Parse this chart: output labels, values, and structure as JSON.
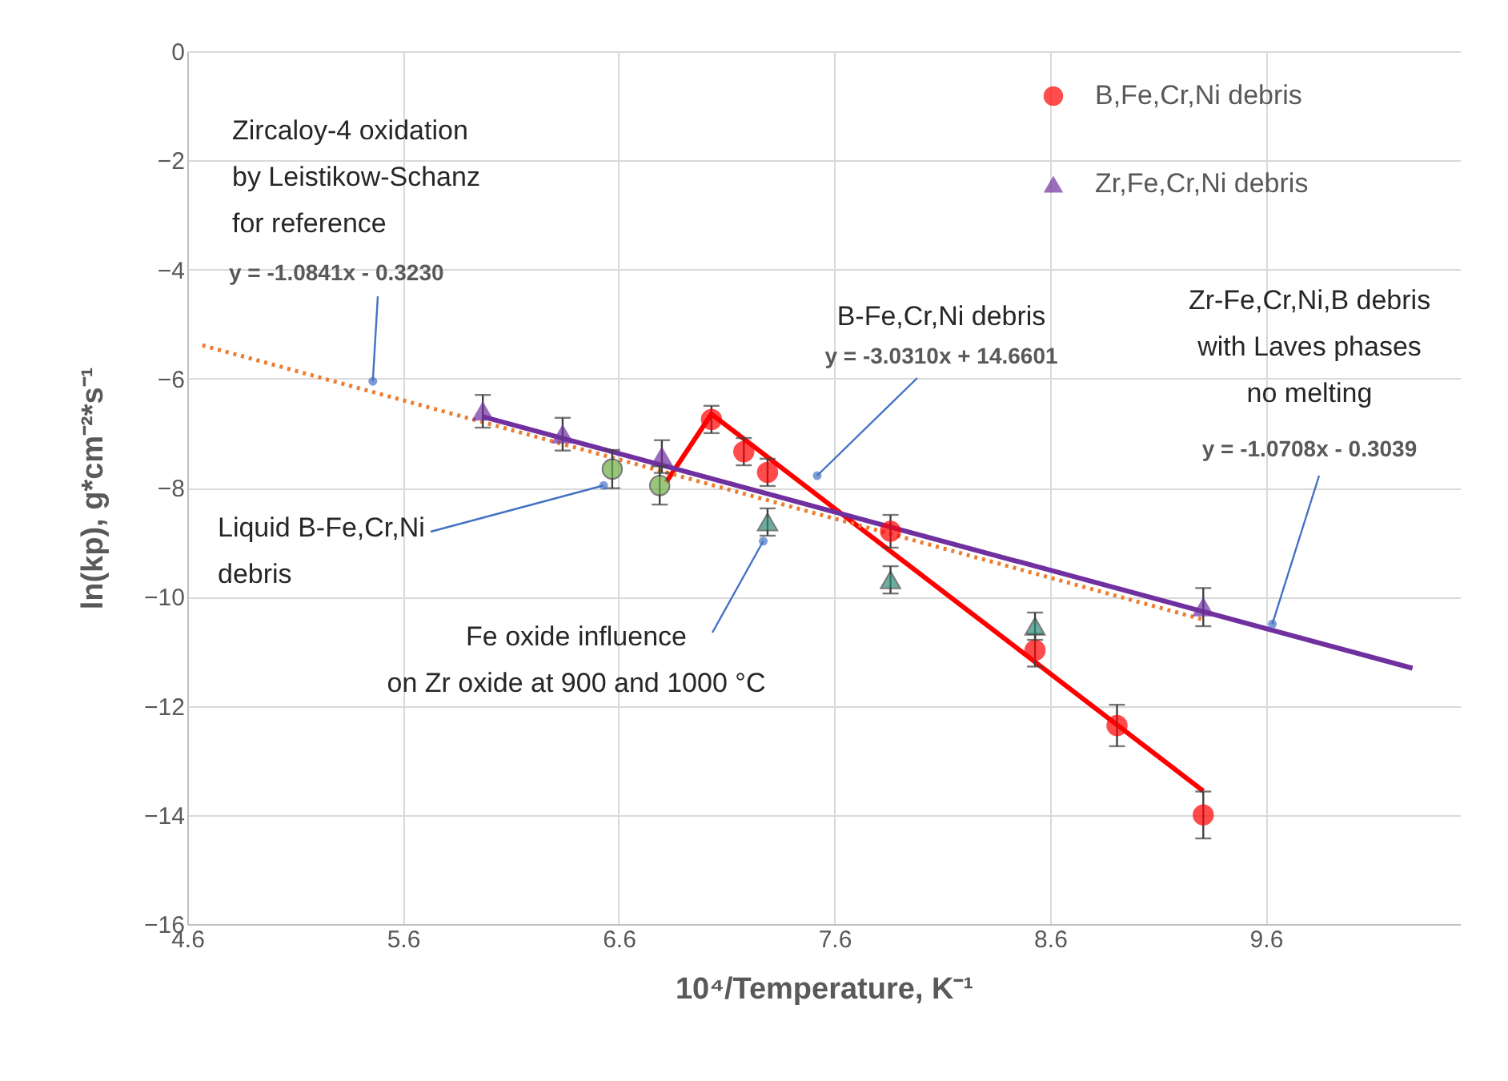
{
  "chart_data": {
    "type": "scatter",
    "xlabel": "10⁴/Temperature, K⁻¹",
    "ylabel": "ln(kp), g*cm⁻²*s⁻¹",
    "xlim": [
      4.6,
      10.5
    ],
    "ylim": [
      -16,
      0
    ],
    "xticks": [
      4.6,
      5.6,
      6.6,
      7.6,
      8.6,
      9.6
    ],
    "yticks": [
      0,
      -2,
      -4,
      -6,
      -8,
      -10,
      -12,
      -14,
      -16
    ],
    "grid": true,
    "legend": "top right",
    "series": [
      {
        "name": "B,Fe,Cr,Ni debris",
        "type": "scatter",
        "marker": "circle",
        "color": "#ff0000",
        "x": [
          7.03,
          7.18,
          7.29,
          7.86,
          8.53,
          8.91,
          9.31
        ],
        "values": [
          -6.75,
          -7.34,
          -7.72,
          -8.8,
          -10.98,
          -12.36,
          -14.0
        ],
        "errors": [
          0.25,
          0.25,
          0.25,
          0.3,
          0.3,
          0.38,
          0.43
        ]
      },
      {
        "name": "Zr,Fe,Cr,Ni debris",
        "type": "scatter",
        "marker": "triangle",
        "color": "#7030a0",
        "x": [
          5.97,
          6.34,
          6.8,
          9.31
        ],
        "values": [
          -6.6,
          -7.02,
          -7.43,
          -10.19
        ],
        "errors": [
          0.3,
          0.3,
          0.3,
          0.35
        ]
      },
      {
        "type": "scatter",
        "marker": "circle",
        "color": "#70ad47",
        "x": [
          6.57,
          6.79
        ],
        "values": [
          -7.66,
          -7.96
        ],
        "errors": [
          0.35,
          0.35
        ]
      },
      {
        "type": "scatter",
        "marker": "triangle",
        "color": "#2e8b7a",
        "x": [
          7.29,
          7.86,
          8.53
        ],
        "values": [
          -8.63,
          -9.69,
          -10.54
        ],
        "errors": [
          0.25,
          0.25,
          0.25
        ]
      },
      {
        "type": "line",
        "color": "#ff0000",
        "x": [
          6.82,
          7.03,
          9.31
        ],
        "values": [
          -7.9,
          -6.65,
          -13.56
        ],
        "line_style": "solid"
      },
      {
        "type": "line",
        "color": "#7030a0",
        "x": [
          5.97,
          10.28
        ],
        "values": [
          -6.7,
          -11.31
        ],
        "line_style": "solid"
      },
      {
        "type": "line",
        "color": "#ed7d31",
        "x": [
          4.67,
          9.31
        ],
        "values": [
          -5.39,
          -10.42
        ],
        "line_style": "dotted"
      }
    ],
    "annotations": [
      "Zircaloy-4 oxidation\nby Leistikow-Schanz\nfor reference",
      {
        "text": "y = -1.0841x - 0.3230",
        "x": 5.46,
        "y": -6.05
      },
      "B-Fe,Cr,Ni debris",
      {
        "text": "y = -3.0310x + 14.6601",
        "x": 7.52,
        "y": -7.78
      },
      "Zr-Fe,Cr,Ni,B debris\nwith Laves phases\nno melting",
      {
        "text": "y = -1.0708x - 0.3039",
        "x": 9.63,
        "y": -10.5
      },
      {
        "text": "Liquid B-Fe,Cr,Ni\ndebris",
        "x": 6.53,
        "y": -7.96
      },
      {
        "text": "Fe oxide influence\non Zr oxide at 900 and 1000 °C",
        "x": 7.27,
        "y": -8.98
      }
    ]
  }
}
